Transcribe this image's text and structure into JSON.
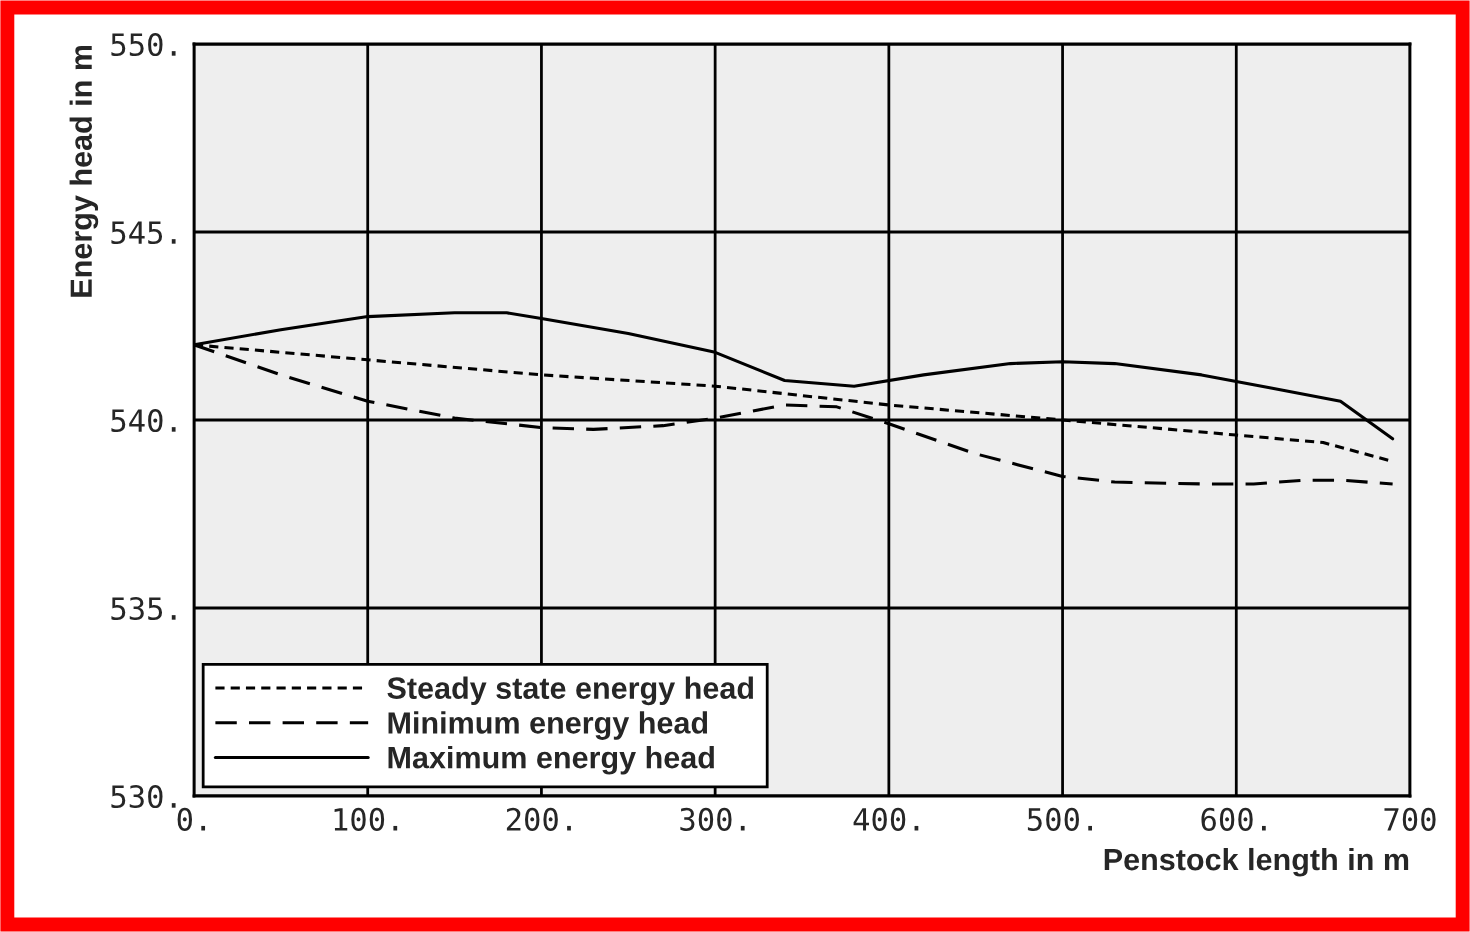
{
  "chart_data": {
    "type": "line",
    "xlabel": "Penstock length in m",
    "ylabel": "Energy head in m",
    "xlim": [
      0,
      700
    ],
    "ylim": [
      530,
      550
    ],
    "xticks": [
      {
        "value": 0,
        "label": "0."
      },
      {
        "value": 100,
        "label": "100."
      },
      {
        "value": 200,
        "label": "200."
      },
      {
        "value": 300,
        "label": "300."
      },
      {
        "value": 400,
        "label": "400."
      },
      {
        "value": 500,
        "label": "500."
      },
      {
        "value": 600,
        "label": "600."
      },
      {
        "value": 700,
        "label": "700"
      }
    ],
    "yticks": [
      {
        "value": 530,
        "label": "530."
      },
      {
        "value": 535,
        "label": "535."
      },
      {
        "value": 540,
        "label": "540."
      },
      {
        "value": 545,
        "label": "545."
      },
      {
        "value": 550,
        "label": "550."
      }
    ],
    "grid": true,
    "legend": "bottom left",
    "marker": "none",
    "series": [
      {
        "name": "Steady state energy head",
        "color": "#000000",
        "line_style": "dotted",
        "x": [
          0,
          100,
          200,
          300,
          400,
          500,
          600,
          650,
          690
        ],
        "values": [
          542,
          541.6,
          541.2,
          540.9,
          540.4,
          540.0,
          539.6,
          539.4,
          538.9
        ]
      },
      {
        "name": "Minimum energy head",
        "color": "#000000",
        "line_style": "dashed",
        "x": [
          0,
          50,
          100,
          150,
          200,
          230,
          270,
          300,
          340,
          370,
          400,
          450,
          500,
          530,
          580,
          610,
          640,
          660,
          690
        ],
        "values": [
          542,
          541.2,
          540.5,
          540.05,
          539.8,
          539.75,
          539.85,
          540.05,
          540.4,
          540.35,
          539.9,
          539.1,
          538.5,
          538.35,
          538.3,
          538.3,
          538.4,
          538.4,
          538.3
        ]
      },
      {
        "name": "Maximum energy head",
        "color": "#000000",
        "line_style": "solid",
        "x": [
          0,
          50,
          100,
          150,
          180,
          200,
          250,
          300,
          340,
          380,
          420,
          470,
          500,
          530,
          580,
          620,
          660,
          690
        ],
        "values": [
          542,
          542.4,
          542.75,
          542.85,
          542.85,
          542.7,
          542.3,
          541.8,
          541.05,
          540.9,
          541.2,
          541.5,
          541.55,
          541.5,
          541.2,
          540.85,
          540.5,
          539.5
        ]
      }
    ]
  }
}
